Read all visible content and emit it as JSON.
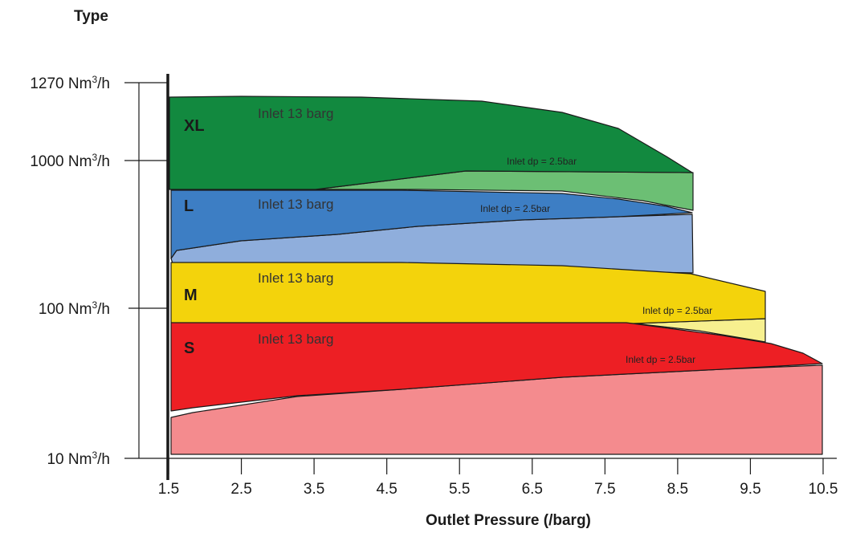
{
  "chart_data": {
    "type": "area",
    "title": "",
    "ylabel_title": "Type",
    "xlabel": "Outlet Pressure (/barg)",
    "x_ticks": [
      "1.5",
      "2.5",
      "3.5",
      "4.5",
      "5.5",
      "6.5",
      "7.5",
      "8.5",
      "9.5",
      "10.5"
    ],
    "xlim": [
      1.5,
      10.5
    ],
    "y_ticks": [
      {
        "base": "1270 Nm",
        "sup": "3",
        "unit": "/h"
      },
      {
        "base": "1000 Nm",
        "sup": "3",
        "unit": "/h"
      },
      {
        "base": "100 Nm",
        "sup": "3",
        "unit": "/h"
      },
      {
        "base": "10 Nm",
        "sup": "3",
        "unit": "/h"
      }
    ],
    "inlet_label": "Inlet 13 barg",
    "dp_label": "Inlet dp = 2.5bar",
    "series": [
      {
        "name": "XL",
        "max_outlet_barg": 8.5,
        "inlet13_color": "#12893f",
        "dp_color": "#6cbf74"
      },
      {
        "name": "L",
        "max_outlet_barg": 8.5,
        "inlet13_color": "#3d7ec4",
        "dp_color": "#8faedc"
      },
      {
        "name": "M",
        "max_outlet_barg": 9.5,
        "inlet13_color": "#f3d30c",
        "dp_color": "#f7f08f"
      },
      {
        "name": "S",
        "max_outlet_barg": 10.3,
        "inlet13_color": "#ed1f24",
        "dp_color": "#f48b8e"
      }
    ]
  }
}
